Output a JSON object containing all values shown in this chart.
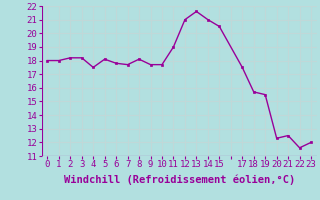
{
  "x": [
    0,
    1,
    2,
    3,
    4,
    5,
    6,
    7,
    8,
    9,
    10,
    11,
    12,
    13,
    14,
    15,
    17,
    18,
    19,
    20,
    21,
    22,
    23
  ],
  "y": [
    18.0,
    18.0,
    18.2,
    18.2,
    17.5,
    18.1,
    17.8,
    17.7,
    18.1,
    17.7,
    17.7,
    19.0,
    21.0,
    21.6,
    21.0,
    20.5,
    17.5,
    15.7,
    15.5,
    12.3,
    12.5,
    11.6,
    12.0
  ],
  "line_color": "#990099",
  "marker_color": "#990099",
  "bg_color": "#b2e0e0",
  "grid_color": "#c0d8d8",
  "xlabel": "Windchill (Refroidissement éolien,°C)",
  "xlabel_color": "#990099",
  "tick_color": "#990099",
  "xlim": [
    -0.5,
    23.5
  ],
  "ylim": [
    11,
    22
  ],
  "yticks": [
    11,
    12,
    13,
    14,
    15,
    16,
    17,
    18,
    19,
    20,
    21,
    22
  ],
  "xtick_labels": [
    "0",
    "1",
    "2",
    "3",
    "4",
    "5",
    "6",
    "7",
    "8",
    "9",
    "10",
    "11",
    "12",
    "13",
    "14",
    "15",
    "",
    "17",
    "18",
    "19",
    "20",
    "21",
    "22",
    "23"
  ],
  "xtick_positions": [
    0,
    1,
    2,
    3,
    4,
    5,
    6,
    7,
    8,
    9,
    10,
    11,
    12,
    13,
    14,
    15,
    16,
    17,
    18,
    19,
    20,
    21,
    22,
    23
  ],
  "font_size": 6.5,
  "label_font_size": 7.5,
  "linewidth": 1.0,
  "markersize": 2.0
}
